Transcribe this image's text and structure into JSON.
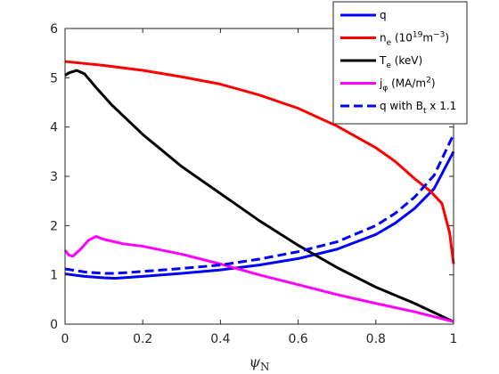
{
  "chart_data": {
    "type": "line",
    "title": "",
    "xlabel": {
      "base": "ψ",
      "sub": "N"
    },
    "ylabel": "",
    "xlim": [
      0,
      1
    ],
    "ylim": [
      0,
      6
    ],
    "xticks": [
      0,
      0.2,
      0.4,
      0.6,
      0.8,
      1
    ],
    "xtick_labels": [
      "0",
      "0.2",
      "0.4",
      "0.6",
      "0.8",
      "1"
    ],
    "yticks": [
      0,
      1,
      2,
      3,
      4,
      5,
      6
    ],
    "ytick_labels": [
      "0",
      "1",
      "2",
      "3",
      "4",
      "5",
      "6"
    ],
    "grid": false,
    "legend_position": "top-right",
    "series": [
      {
        "name": "q",
        "legend": {
          "base": "q",
          "sub": "",
          "rest": ""
        },
        "color": "#0000ff",
        "style": "solid",
        "x": [
          0,
          0.05,
          0.1,
          0.13,
          0.2,
          0.3,
          0.4,
          0.5,
          0.6,
          0.7,
          0.8,
          0.85,
          0.9,
          0.95,
          1.0
        ],
        "y": [
          1.02,
          0.97,
          0.94,
          0.93,
          0.97,
          1.03,
          1.1,
          1.2,
          1.33,
          1.52,
          1.82,
          2.05,
          2.35,
          2.75,
          3.5
        ]
      },
      {
        "name": "n_e (10^19 m^-3)",
        "legend": {
          "base": "n",
          "sub": "e",
          "rest": " (10",
          "sup1": "19",
          "rest2": "m",
          "sup2": "−3",
          "rest3": ")"
        },
        "color": "#ff0000",
        "style": "solid",
        "x": [
          0,
          0.1,
          0.2,
          0.3,
          0.4,
          0.5,
          0.6,
          0.7,
          0.8,
          0.85,
          0.9,
          0.94,
          0.97,
          0.99,
          1.0
        ],
        "y": [
          5.33,
          5.25,
          5.15,
          5.02,
          4.87,
          4.65,
          4.38,
          4.02,
          3.58,
          3.3,
          2.95,
          2.7,
          2.45,
          1.85,
          1.22
        ]
      },
      {
        "name": "T_e (keV)",
        "legend": {
          "base": "T",
          "sub": "e",
          "rest": " (keV)"
        },
        "color": "#000000",
        "style": "solid",
        "x": [
          0,
          0.01,
          0.03,
          0.05,
          0.08,
          0.12,
          0.2,
          0.3,
          0.4,
          0.5,
          0.6,
          0.7,
          0.8,
          0.9,
          1.0
        ],
        "y": [
          5.05,
          5.1,
          5.15,
          5.08,
          4.8,
          4.45,
          3.85,
          3.2,
          2.65,
          2.1,
          1.6,
          1.15,
          0.75,
          0.42,
          0.05
        ]
      },
      {
        "name": "j_phi (MA/m^2)",
        "legend": {
          "base": "j",
          "sub": "φ",
          "rest": " (MA/m",
          "sup1": "2",
          "rest2": ")"
        },
        "color": "#ff00ff",
        "style": "solid",
        "x": [
          0,
          0.01,
          0.02,
          0.04,
          0.06,
          0.08,
          0.1,
          0.15,
          0.2,
          0.3,
          0.4,
          0.5,
          0.6,
          0.7,
          0.8,
          0.9,
          1.0
        ],
        "y": [
          1.5,
          1.4,
          1.38,
          1.52,
          1.7,
          1.78,
          1.72,
          1.63,
          1.58,
          1.42,
          1.22,
          1.0,
          0.8,
          0.6,
          0.42,
          0.25,
          0.05
        ]
      },
      {
        "name": "q with B_t x 1.1",
        "legend": {
          "base": "q with B",
          "sub": "t",
          "rest": " x 1.1"
        },
        "color": "#0000ff",
        "style": "dashed",
        "x": [
          0,
          0.05,
          0.1,
          0.13,
          0.2,
          0.3,
          0.4,
          0.5,
          0.6,
          0.7,
          0.8,
          0.85,
          0.9,
          0.95,
          1.0
        ],
        "y": [
          1.12,
          1.06,
          1.03,
          1.03,
          1.07,
          1.13,
          1.2,
          1.32,
          1.47,
          1.67,
          2.0,
          2.25,
          2.58,
          3.02,
          3.85
        ]
      }
    ]
  }
}
